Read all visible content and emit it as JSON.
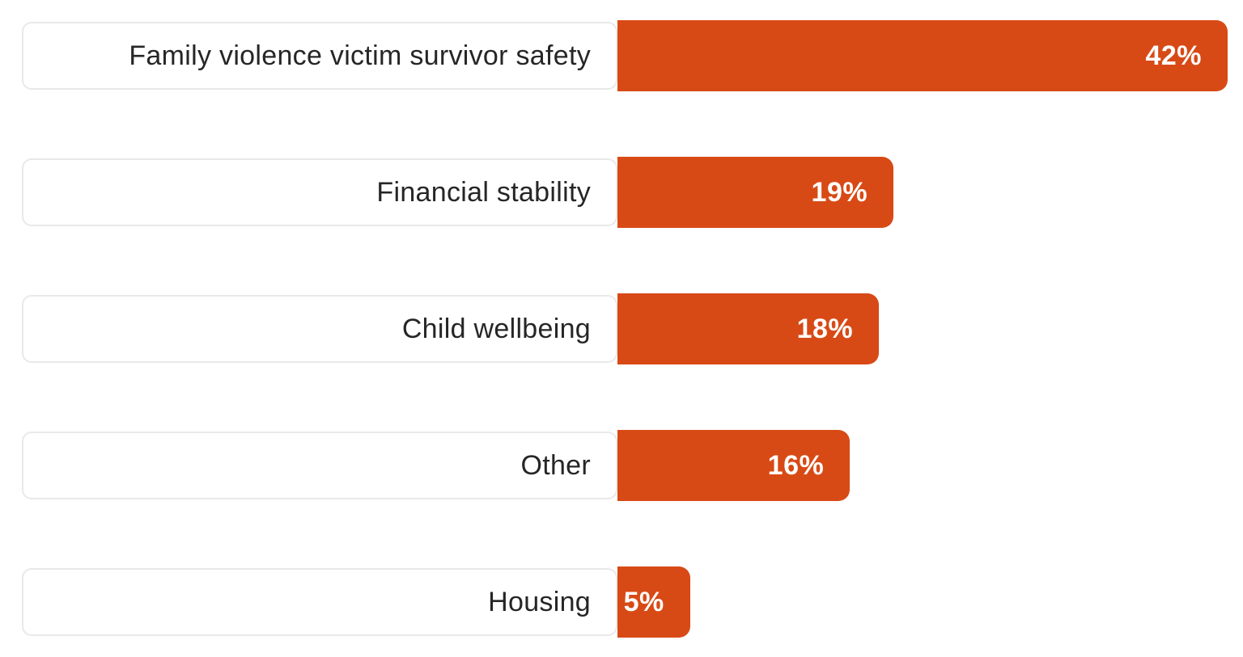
{
  "theme": {
    "page_background": "#ffffff",
    "bar_color": "#d84a15",
    "label_box_border_color": "#e9e9e9",
    "label_text_color": "#262626",
    "value_text_color": "#ffffff"
  },
  "chart_data": {
    "type": "bar",
    "orientation": "horizontal",
    "title": "",
    "xlabel": "",
    "ylabel": "",
    "xlim": [
      0,
      42
    ],
    "grid": false,
    "legend": "none",
    "categories": [
      "Family violence victim survivor safety",
      "Financial stability",
      "Child wellbeing",
      "Other",
      "Housing"
    ],
    "values": [
      42,
      19,
      18,
      16,
      5
    ],
    "rows": [
      {
        "label": "Family violence victim survivor safety",
        "value": 42,
        "value_label": "42%"
      },
      {
        "label": "Financial stability",
        "value": 19,
        "value_label": "19%"
      },
      {
        "label": "Child wellbeing",
        "value": 18,
        "value_label": "18%"
      },
      {
        "label": "Other",
        "value": 16,
        "value_label": "16%"
      },
      {
        "label": "Housing",
        "value": 5,
        "value_label": "5%"
      }
    ]
  }
}
